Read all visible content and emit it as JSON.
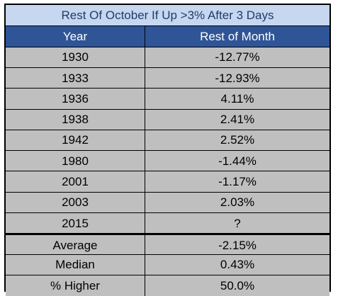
{
  "chart_data": {
    "type": "table",
    "title": "Rest Of October If Up >3% After 3 Days",
    "columns": [
      "Year",
      "Rest of Month"
    ],
    "rows": [
      [
        "1930",
        "-12.77%"
      ],
      [
        "1933",
        "-12.93%"
      ],
      [
        "1936",
        "4.11%"
      ],
      [
        "1938",
        "2.41%"
      ],
      [
        "1942",
        "2.52%"
      ],
      [
        "1980",
        "-1.44%"
      ],
      [
        "2001",
        "-1.17%"
      ],
      [
        "2003",
        "2.03%"
      ],
      [
        "2015",
        "?"
      ]
    ],
    "summary": [
      [
        "Average",
        "-2.15%"
      ],
      [
        "Median",
        "0.43%"
      ],
      [
        "% Higher",
        "50.0%"
      ]
    ]
  },
  "colors": {
    "title_bg": "#c6d7ef",
    "title_text": "#1f3d6b",
    "header_bg": "#2f5597",
    "header_text": "#ffffff",
    "cell_bg": "#bfbfbf"
  }
}
